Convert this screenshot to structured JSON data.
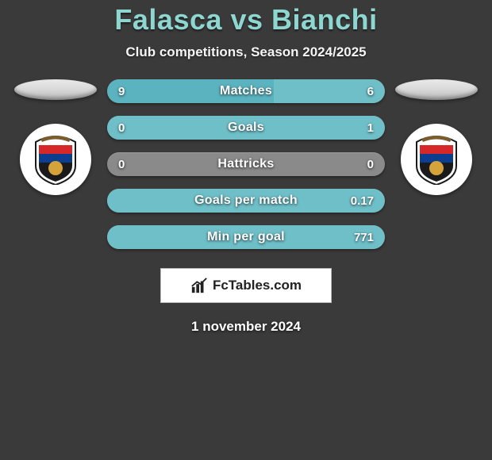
{
  "title": "Falasca vs Bianchi",
  "subtitle": "Club competitions, Season 2024/2025",
  "footer_date": "1 november 2024",
  "brand_label": "FcTables.com",
  "colors": {
    "title": "#8ed6d0",
    "bar_bg": "#8a8a8a",
    "bar_left_fill": "#5bb3c0",
    "bar_right_fill": "#6fbfc8"
  },
  "bars": [
    {
      "label": "Matches",
      "left_val": "9",
      "right_val": "6",
      "left_pct": 60,
      "right_pct": 40
    },
    {
      "label": "Goals",
      "left_val": "0",
      "right_val": "1",
      "left_pct": 0,
      "right_pct": 100
    },
    {
      "label": "Hattricks",
      "left_val": "0",
      "right_val": "0",
      "left_pct": 0,
      "right_pct": 0
    },
    {
      "label": "Goals per match",
      "left_val": "",
      "right_val": "0.17",
      "left_pct": 0,
      "right_pct": 100
    },
    {
      "label": "Min per goal",
      "left_val": "",
      "right_val": "771",
      "left_pct": 0,
      "right_pct": 100
    }
  ]
}
